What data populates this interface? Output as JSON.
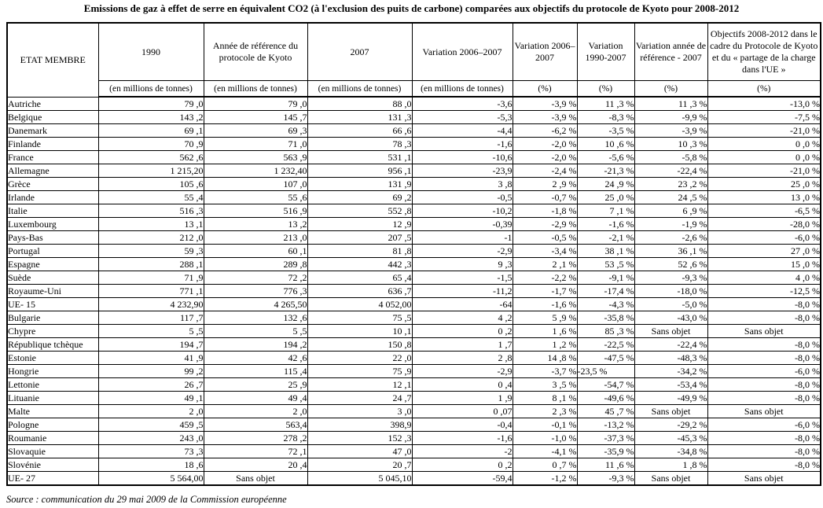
{
  "title": "Emissions de gaz à effet de serre en équivalent CO2 (à l'exclusion des puits de carbone) comparées aux objectifs du protocole de Kyoto pour 2008-2012",
  "source_note": "Source : communication du 29 mai 2009 de la Commission européenne",
  "table": {
    "header": {
      "member": "ETAT MEMBRE",
      "col_1990": "1990",
      "col_ref_year": "Année de référence du protocole de Kyoto",
      "col_2007": "2007",
      "col_var_0607_mt": "Variation 2006–2007",
      "col_var_0607_pct": "Variation 2006–2007",
      "col_var_9007_pct": "Variation 1990-2007",
      "col_var_ref_pct": "Variation année de référence - 2007",
      "col_objectives": "Objectifs 2008-2012 dans le cadre du Protocole de Kyoto et du « partage de la charge dans l'UE »",
      "unit_mt": "(en millions de tonnes)",
      "unit_pct": "(%)"
    },
    "rows": [
      [
        "Autriche",
        "79 ,0",
        "79 ,0",
        "88 ,0",
        "-3,6",
        "-3,9 %",
        "11 ,3 %",
        "11 ,3 %",
        "-13,0 %"
      ],
      [
        "Belgique",
        "143 ,2",
        "145 ,7",
        "131 ,3",
        "-5,3",
        "-3,9 %",
        "-8,3 %",
        "-9,9 %",
        "-7,5 %"
      ],
      [
        "Danemark",
        "69 ,1",
        "69 ,3",
        "66 ,6",
        "-4,4",
        "-6,2 %",
        "-3,5 %",
        "-3,9 %",
        "-21,0 %"
      ],
      [
        "Finlande",
        "70 ,9",
        "71 ,0",
        "78 ,3",
        "-1,6",
        "-2,0 %",
        "10 ,6 %",
        "10 ,3 %",
        "0 ,0 %"
      ],
      [
        "France",
        "562 ,6",
        "563 ,9",
        "531 ,1",
        "-10,6",
        "-2,0 %",
        "-5,6 %",
        "-5,8 %",
        "0 ,0 %"
      ],
      [
        "Allemagne",
        "1 215,20",
        "1 232,40",
        "956 ,1",
        "-23,9",
        "-2,4 %",
        "-21,3 %",
        "-22,4 %",
        "-21,0 %"
      ],
      [
        "Grèce",
        "105 ,6",
        "107 ,0",
        "131 ,9",
        "3 ,8",
        "2 ,9 %",
        "24 ,9 %",
        "23 ,2 %",
        "25 ,0 %"
      ],
      [
        "Irlande",
        "55 ,4",
        "55 ,6",
        "69 ,2",
        "-0,5",
        "-0,7 %",
        "25 ,0 %",
        "24 ,5 %",
        "13 ,0 %"
      ],
      [
        "Italie",
        "516 ,3",
        "516 ,9",
        "552 ,8",
        "-10,2",
        "-1,8 %",
        "7 ,1 %",
        "6 ,9 %",
        "-6,5 %"
      ],
      [
        "Luxembourg",
        "13 ,1",
        "13 ,2",
        "12 ,9",
        "-0,39",
        "-2,9 %",
        "-1,6 %",
        "-1,9 %",
        "-28,0 %"
      ],
      [
        "Pays-Bas",
        "212 ,0",
        "213 ,0",
        "207 ,5",
        "-1",
        "-0,5 %",
        "-2,1 %",
        "-2,6 %",
        "-6,0 %"
      ],
      [
        "Portugal",
        "59 ,3",
        "60 ,1",
        "81 ,8",
        "-2,9",
        "-3,4 %",
        "38 ,1 %",
        "36 ,1 %",
        "27 ,0 %"
      ],
      [
        "Espagne",
        "288 ,1",
        "289 ,8",
        "442 ,3",
        "9 ,3",
        "2 ,1 %",
        "53 ,5 %",
        "52 ,6 %",
        "15 ,0 %"
      ],
      [
        "Suède",
        "71 ,9",
        "72 ,2",
        "65 ,4",
        "-1,5",
        "-2,2 %",
        "-9,1 %",
        "-9,3 %",
        "4 ,0 %"
      ],
      [
        "Royaume-Uni",
        "771 ,1",
        "776 ,3",
        "636 ,7",
        "-11,2",
        "-1,7 %",
        "-17,4 %",
        "-18,0 %",
        "-12,5 %"
      ],
      [
        "UE- 15",
        "4 232,90",
        "4 265,50",
        "4 052,00",
        "-64",
        "-1,6 %",
        "-4,3 %",
        "-5,0 %",
        "-8,0 %"
      ],
      [
        "Bulgarie",
        "117 ,7",
        "132 ,6",
        "75 ,5",
        "4 ,2",
        "5 ,9 %",
        "-35,8 %",
        "-43,0 %",
        "-8,0 %"
      ],
      [
        "Chypre",
        "5 ,5",
        "5 ,5",
        "10 ,1",
        "0 ,2",
        "1 ,6 %",
        "85 ,3 %",
        "Sans objet",
        "Sans objet"
      ],
      [
        "République tchèque",
        "194 ,7",
        "194 ,2",
        "150 ,8",
        "1 ,7",
        "1 ,2 %",
        "-22,5 %",
        "-22,4 %",
        "-8,0 %"
      ],
      [
        "Estonie",
        "41 ,9",
        "42 ,6",
        "22 ,0",
        "2 ,8",
        "14 ,8 %",
        "-47,5 %",
        "-48,3 %",
        "-8,0 %"
      ],
      [
        "Hongrie",
        "99 ,2",
        "115 ,4",
        "75 ,9",
        "-2,9",
        "-3,7 %",
        "-23,5 %",
        "-34,2 %",
        "-6,0 %"
      ],
      [
        "Lettonie",
        "26 ,7",
        "25 ,9",
        "12 ,1",
        "0 ,4",
        "3 ,5 %",
        "-54,7 %",
        "-53,4 %",
        "-8,0 %"
      ],
      [
        "Lituanie",
        "49 ,1",
        "49 ,4",
        "24 ,7",
        "1 ,9",
        "8 ,1 %",
        "-49,6 %",
        "-49,9 %",
        "-8,0 %"
      ],
      [
        "Malte",
        "2 ,0",
        "2 ,0",
        "3 ,0",
        "0 ,07",
        "2 ,3 %",
        "45 ,7 %",
        "Sans objet",
        "Sans objet"
      ],
      [
        "Pologne",
        "459 ,5",
        "563,4",
        "398,9",
        "-0,4",
        "-0,1 %",
        "-13,2 %",
        "-29,2 %",
        "-6,0 %"
      ],
      [
        "Roumanie",
        "243 ,0",
        "278 ,2",
        "152 ,3",
        "-1,6",
        "-1,0 %",
        "-37,3 %",
        "-45,3 %",
        "-8,0 %"
      ],
      [
        "Slovaquie",
        "73 ,3",
        "72 ,1",
        "47 ,0",
        "-2",
        "-4,1 %",
        "-35,9 %",
        "-34,8 %",
        "-8,0 %"
      ],
      [
        "Slovénie",
        "18 ,6",
        "20 ,4",
        "20 ,7",
        "0 ,2",
        "0 ,7 %",
        "11 ,6 %",
        "1 ,8 %",
        "-8,0 %"
      ],
      [
        "UE- 27",
        "5 564,00",
        "Sans objet",
        "5 045,10",
        "-59,4",
        "-1,2 %",
        "-9,3 %",
        "Sans objet",
        "Sans objet"
      ]
    ],
    "centered_value": "Sans objet",
    "left_aligned_cells": [
      {
        "row": 20,
        "col": 6
      }
    ]
  }
}
